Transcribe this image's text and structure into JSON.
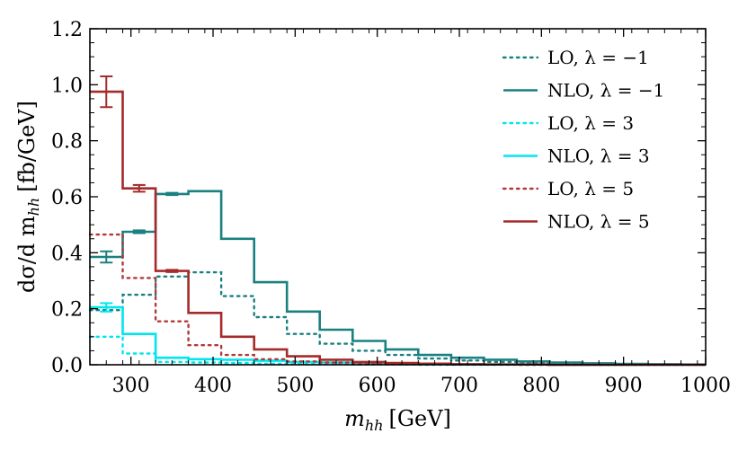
{
  "chart_data": {
    "type": "line",
    "style": "step histogram with error bars",
    "title": "",
    "xlabel_main": "m",
    "xlabel_sub": "hh",
    "xlabel_unit": "[GeV]",
    "ylabel_main": "dσ/d m",
    "ylabel_sub": "hh",
    "ylabel_unit": "[fb/GeV]",
    "xlim": [
      250,
      1000
    ],
    "ylim": [
      0.0,
      1.2
    ],
    "x_ticks": [
      300,
      400,
      500,
      600,
      700,
      800,
      900,
      1000
    ],
    "y_ticks": [
      "0.0",
      "0.2",
      "0.4",
      "0.6",
      "0.8",
      "1.0",
      "1.2"
    ],
    "legend_position": "top-right",
    "bin_edges": [
      250,
      290,
      330,
      370,
      410,
      450,
      490,
      530,
      570,
      610,
      650,
      690,
      730,
      770,
      810,
      850,
      890,
      930,
      970,
      1000
    ],
    "series": [
      {
        "name": "LO, λ = −1",
        "legend": "LO, λ = −1",
        "color": "#1a8080",
        "dash": "dotted",
        "values": [
          0.195,
          0.25,
          0.315,
          0.33,
          0.245,
          0.17,
          0.11,
          0.075,
          0.05,
          0.035,
          0.022,
          0.015,
          0.01,
          0.007,
          0.005,
          0.003,
          0.002,
          0.001,
          0.0005
        ]
      },
      {
        "name": "NLO, λ = −1",
        "legend": "NLO, λ = −1",
        "color": "#1a8080",
        "dash": "solid",
        "values": [
          0.385,
          0.475,
          0.61,
          0.62,
          0.45,
          0.295,
          0.19,
          0.125,
          0.085,
          0.055,
          0.035,
          0.025,
          0.018,
          0.012,
          0.008,
          0.005,
          0.003,
          0.002,
          0.001
        ],
        "error_bars": [
          {
            "x": 270,
            "y": 0.385,
            "err": 0.02
          },
          {
            "x": 310,
            "y": 0.475,
            "err": 0.005
          },
          {
            "x": 350,
            "y": 0.61,
            "err": 0.004
          }
        ]
      },
      {
        "name": "LO, λ = 3",
        "legend": "LO, λ = 3",
        "color": "#00e5ee",
        "dash": "dotted",
        "values": [
          0.1,
          0.04,
          0.01,
          0.008,
          0.006,
          0.004,
          0.003,
          0.002,
          0.001,
          0.001,
          0.0,
          0.0,
          0.0,
          0.0,
          0.0,
          0.0,
          0.0,
          0.0,
          0.0
        ]
      },
      {
        "name": "NLO, λ = 3",
        "legend": "NLO, λ = 3",
        "color": "#00e5ee",
        "dash": "solid",
        "values": [
          0.205,
          0.11,
          0.025,
          0.02,
          0.018,
          0.014,
          0.01,
          0.008,
          0.006,
          0.004,
          0.003,
          0.002,
          0.001,
          0.001,
          0.0,
          0.0,
          0.0,
          0.0,
          0.0
        ],
        "error_bars": [
          {
            "x": 270,
            "y": 0.205,
            "err": 0.015
          }
        ]
      },
      {
        "name": "LO, λ = 5",
        "legend": "LO, λ = 5",
        "color": "#b03a3a",
        "dash": "dotted",
        "values": [
          0.465,
          0.31,
          0.155,
          0.07,
          0.035,
          0.02,
          0.012,
          0.008,
          0.005,
          0.003,
          0.002,
          0.001,
          0.001,
          0.0,
          0.0,
          0.0,
          0.0,
          0.0,
          0.0
        ]
      },
      {
        "name": "NLO, λ = 5",
        "legend": "NLO, λ = 5",
        "color": "#a52a2a",
        "dash": "solid",
        "values": [
          0.975,
          0.63,
          0.335,
          0.185,
          0.1,
          0.055,
          0.03,
          0.018,
          0.01,
          0.006,
          0.004,
          0.002,
          0.001,
          0.001,
          0.0,
          0.0,
          0.0,
          0.0,
          0.0
        ],
        "error_bars": [
          {
            "x": 270,
            "y": 0.975,
            "err": 0.055
          },
          {
            "x": 310,
            "y": 0.63,
            "err": 0.012
          },
          {
            "x": 350,
            "y": 0.335,
            "err": 0.004
          }
        ]
      }
    ]
  }
}
